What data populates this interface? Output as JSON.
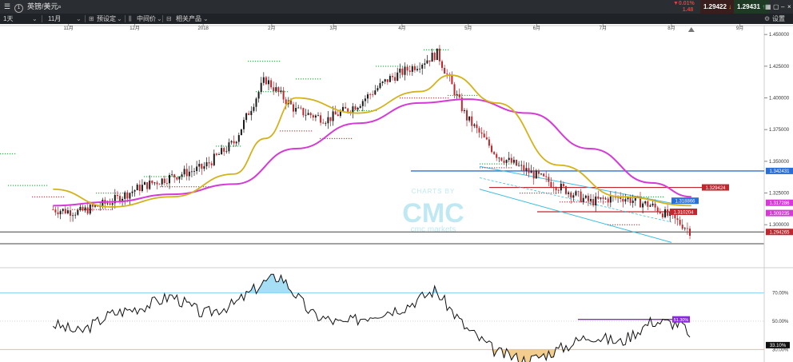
{
  "topbar": {
    "menu_icon": "hamburger-icon",
    "instrument_number": "1",
    "instrument": "英镑/美元",
    "search_icon": "search-icon",
    "change_pct": "▼0.01%",
    "change_abs": "1.48",
    "sell_price": "1.29422",
    "buy_price": "1.29431",
    "icons": [
      "grid-icon",
      "window-icon",
      "minimize-icon",
      "maximize-icon",
      "close-icon"
    ]
  },
  "toolbar": {
    "timeframe": "1天",
    "range": "11月",
    "preset": "预设定",
    "price_type": "中间价",
    "related": "相关产品",
    "settings": "设置"
  },
  "colors": {
    "up_candle": "#1a1a1a",
    "down_candle": "#c0282d",
    "ma_fast": "#d4b21a",
    "ma_slow": "#d63ad6",
    "channel": "#3cbfe0",
    "hline_blue": "#2a6fd6",
    "hline_red": "#c0282d",
    "dots_green": "#2bb24c",
    "dots_red": "#d0404a",
    "rsi_line": "#111111",
    "rsi_high_band": "#8fd6f2",
    "rsi_low_band": "#f0c070",
    "rsi_purple": "#8a2ad6"
  },
  "chart_data": [
    {
      "type": "candlestick",
      "title": "",
      "x_tick_labels": [
        "11月",
        "12月",
        "2018",
        "2月",
        "3月",
        "4月",
        "5月",
        "6月",
        "7月",
        "8月",
        "9月"
      ],
      "y_tick_labels": [
        "1.450000",
        "1.425000",
        "1.400000",
        "1.375000",
        "1.350000",
        "1.325000",
        "1.300000"
      ],
      "ylim": [
        1.285,
        1.452
      ],
      "grid": false,
      "series": [
        {
          "name": "close",
          "x": [
            "2017-10-25",
            "2017-11-06",
            "2017-11-20",
            "2017-12-04",
            "2017-12-18",
            "2018-01-01",
            "2018-01-15",
            "2018-01-29",
            "2018-02-12",
            "2018-02-26",
            "2018-03-12",
            "2018-03-26",
            "2018-04-09",
            "2018-04-17",
            "2018-04-30",
            "2018-05-14",
            "2018-05-28",
            "2018-06-11",
            "2018-06-25",
            "2018-07-09",
            "2018-07-23",
            "2018-08-06",
            "2018-08-10"
          ],
          "values": [
            1.312,
            1.31,
            1.318,
            1.33,
            1.338,
            1.345,
            1.365,
            1.415,
            1.39,
            1.383,
            1.395,
            1.415,
            1.427,
            1.435,
            1.385,
            1.355,
            1.342,
            1.33,
            1.318,
            1.322,
            1.315,
            1.3,
            1.2943
          ]
        },
        {
          "name": "ma_fast",
          "x": [
            "2017-10-25",
            "2017-11-20",
            "2017-12-18",
            "2018-01-15",
            "2018-01-29",
            "2018-02-12",
            "2018-03-12",
            "2018-04-09",
            "2018-04-23",
            "2018-05-14",
            "2018-06-11",
            "2018-07-09",
            "2018-08-10"
          ],
          "values": [
            1.328,
            1.314,
            1.322,
            1.34,
            1.368,
            1.4,
            1.388,
            1.405,
            1.418,
            1.396,
            1.347,
            1.322,
            1.315
          ]
        },
        {
          "name": "ma_slow",
          "x": [
            "2017-10-25",
            "2017-11-20",
            "2017-12-18",
            "2018-01-15",
            "2018-02-12",
            "2018-03-12",
            "2018-04-09",
            "2018-05-01",
            "2018-05-28",
            "2018-06-25",
            "2018-07-23",
            "2018-08-10"
          ],
          "values": [
            1.315,
            1.318,
            1.324,
            1.332,
            1.36,
            1.38,
            1.396,
            1.399,
            1.388,
            1.36,
            1.333,
            1.322
          ]
        }
      ],
      "price_labels": [
        {
          "value": "1.342431",
          "color": "#2a6fd6"
        },
        {
          "value": "1.329424",
          "color": "#c0282d"
        },
        {
          "value": "1.318866",
          "color": "#2a6fd6"
        },
        {
          "value": "1.317286",
          "color": "#d63ad6"
        },
        {
          "value": "1.310204",
          "color": "#c0282d"
        },
        {
          "value": "1.309235",
          "color": "#d63ad6"
        },
        {
          "value": "1.294265",
          "color": "#c0282d"
        }
      ],
      "watermark": [
        "CHARTS BY",
        "CMC",
        "cmc markets"
      ]
    },
    {
      "type": "line",
      "title": "",
      "y_tick_labels": [
        "70.00%",
        "50.00%",
        "30.00%"
      ],
      "ylim": [
        24,
        85
      ],
      "current_value_label": "33.10%",
      "purple_label": "51.30%",
      "series": [
        {
          "name": "rsi",
          "x": [
            "2017-10-25",
            "2017-11-06",
            "2017-11-20",
            "2017-12-04",
            "2017-12-18",
            "2018-01-01",
            "2018-01-15",
            "2018-01-29",
            "2018-02-05",
            "2018-02-19",
            "2018-03-05",
            "2018-03-19",
            "2018-04-02",
            "2018-04-16",
            "2018-04-30",
            "2018-05-14",
            "2018-05-28",
            "2018-06-11",
            "2018-06-25",
            "2018-07-09",
            "2018-07-23",
            "2018-08-06",
            "2018-08-10"
          ],
          "values": [
            48,
            42,
            55,
            60,
            68,
            55,
            62,
            78,
            82,
            55,
            48,
            55,
            60,
            72,
            45,
            28,
            22,
            30,
            40,
            35,
            50,
            48,
            33
          ]
        }
      ]
    }
  ]
}
